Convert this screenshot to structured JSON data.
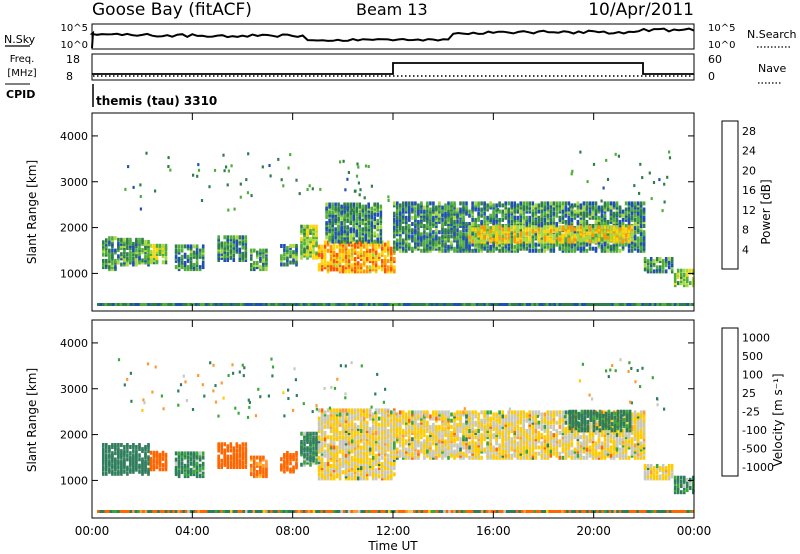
{
  "header": {
    "station": "Goose Bay (fitACF)",
    "beam": "Beam 13",
    "date": "10/Apr/2011"
  },
  "top_panels": {
    "nsky": {
      "label": "N.Sky",
      "ticks": [
        "10^5",
        "10^0"
      ],
      "right_label": "N.Search",
      "right_ticks": [
        "10^5",
        "10^0"
      ]
    },
    "freq": {
      "label_line1": "Freq.",
      "label_line2": "[MHz]",
      "ticks": [
        "18",
        "8"
      ],
      "right_label": "Nave",
      "right_ticks": [
        "60",
        "0"
      ]
    },
    "cpid": {
      "label": "CPID",
      "program": "themis (tau) 3310"
    }
  },
  "colors": {
    "power": [
      "#0000ff",
      "#1f4fb4",
      "#2e7d4b",
      "#4fae3a",
      "#a8d93a",
      "#ffd400",
      "#ff9900",
      "#ff5500",
      "#ee0000"
    ],
    "velocity": [
      "#ee0000",
      "#ff6600",
      "#ff9933",
      "#ffcc00",
      "#c8c8be",
      "#c8c8be",
      "#39a839",
      "#2e7d5b",
      "#2255aa",
      "#1a3fc4"
    ]
  },
  "chart_data": [
    {
      "type": "heatmap",
      "panel": "power",
      "ylabel": "Slant Range [km]",
      "yticks": [
        "4000",
        "3000",
        "2000",
        "1000"
      ],
      "ylim": [
        180,
        4500
      ],
      "xlim": [
        0,
        24
      ],
      "colorbar": {
        "label": "Power [dB]",
        "ticks": [
          "4",
          "8",
          "12",
          "16",
          "20",
          "24",
          "28"
        ],
        "range": [
          0,
          30
        ]
      },
      "regions": [
        {
          "t0": 0.4,
          "t1": 1.0,
          "r0": 1050,
          "r1": 1750,
          "v": 10
        },
        {
          "t0": 1.0,
          "t1": 2.3,
          "r0": 1150,
          "r1": 1700,
          "v": 10
        },
        {
          "t0": 2.3,
          "t1": 3.0,
          "r0": 1200,
          "r1": 1600,
          "v": 14
        },
        {
          "t0": 3.3,
          "t1": 4.4,
          "r0": 1050,
          "r1": 1550,
          "v": 9
        },
        {
          "t0": 5.0,
          "t1": 6.2,
          "r0": 1250,
          "r1": 1750,
          "v": 9
        },
        {
          "t0": 6.3,
          "t1": 7.0,
          "r0": 1050,
          "r1": 1500,
          "v": 10
        },
        {
          "t0": 7.5,
          "t1": 8.2,
          "r0": 1150,
          "r1": 1600,
          "v": 10
        },
        {
          "t0": 8.3,
          "t1": 9.0,
          "r0": 1300,
          "r1": 2000,
          "v": 14
        },
        {
          "t0": 9.0,
          "t1": 12.0,
          "r0": 1000,
          "r1": 1650,
          "v": 21
        },
        {
          "t0": 9.3,
          "t1": 11.5,
          "r0": 1650,
          "r1": 2500,
          "v": 9
        },
        {
          "t0": 12.0,
          "t1": 22.0,
          "r0": 1450,
          "r1": 2500,
          "v": 9
        },
        {
          "t0": 15.0,
          "t1": 21.5,
          "r0": 1650,
          "r1": 2000,
          "v": 18
        },
        {
          "t0": 22.0,
          "t1": 23.2,
          "r0": 1000,
          "r1": 1300,
          "v": 9
        },
        {
          "t0": 23.2,
          "t1": 24.0,
          "r0": 700,
          "r1": 1050,
          "v": 14
        }
      ]
    },
    {
      "type": "heatmap",
      "panel": "velocity",
      "ylabel": "Slant Range [km]",
      "yticks": [
        "4000",
        "3000",
        "2000",
        "1000"
      ],
      "ylim": [
        180,
        4500
      ],
      "xlim": [
        0,
        24
      ],
      "xlabel": "Time UT",
      "xticks": [
        "00:00",
        "04:00",
        "08:00",
        "12:00",
        "16:00",
        "20:00",
        "00:00"
      ],
      "colorbar": {
        "label": "Velocity [m s⁻¹]",
        "ticks": [
          "1000",
          "500",
          "100",
          "25",
          "-25",
          "-100",
          "-500",
          "-1000"
        ],
        "range": [
          -1000,
          1000
        ]
      },
      "regions": [
        {
          "t0": 0.4,
          "t1": 2.3,
          "r0": 1100,
          "r1": 1750,
          "v": 300
        },
        {
          "t0": 2.3,
          "t1": 3.0,
          "r0": 1200,
          "r1": 1600,
          "v": -250
        },
        {
          "t0": 3.3,
          "t1": 4.4,
          "r0": 1050,
          "r1": 1550,
          "v": 150
        },
        {
          "t0": 5.0,
          "t1": 6.2,
          "r0": 1250,
          "r1": 1750,
          "v": -300
        },
        {
          "t0": 6.3,
          "t1": 7.0,
          "r0": 1050,
          "r1": 1500,
          "v": -150
        },
        {
          "t0": 7.5,
          "t1": 8.2,
          "r0": 1150,
          "r1": 1600,
          "v": -300
        },
        {
          "t0": 8.3,
          "t1": 9.0,
          "r0": 1300,
          "r1": 2000,
          "v": 150
        },
        {
          "t0": 9.0,
          "t1": 12.0,
          "r0": 1000,
          "r1": 2500,
          "v": 0
        },
        {
          "t0": 12.0,
          "t1": 22.0,
          "r0": 1450,
          "r1": 2450,
          "v": 0
        },
        {
          "t0": 19.0,
          "t1": 21.5,
          "r0": 2050,
          "r1": 2500,
          "v": 200
        },
        {
          "t0": 22.0,
          "t1": 23.2,
          "r0": 1000,
          "r1": 1300,
          "v": 0
        },
        {
          "t0": 23.2,
          "t1": 24.0,
          "r0": 700,
          "r1": 1050,
          "v": 150
        }
      ]
    }
  ]
}
